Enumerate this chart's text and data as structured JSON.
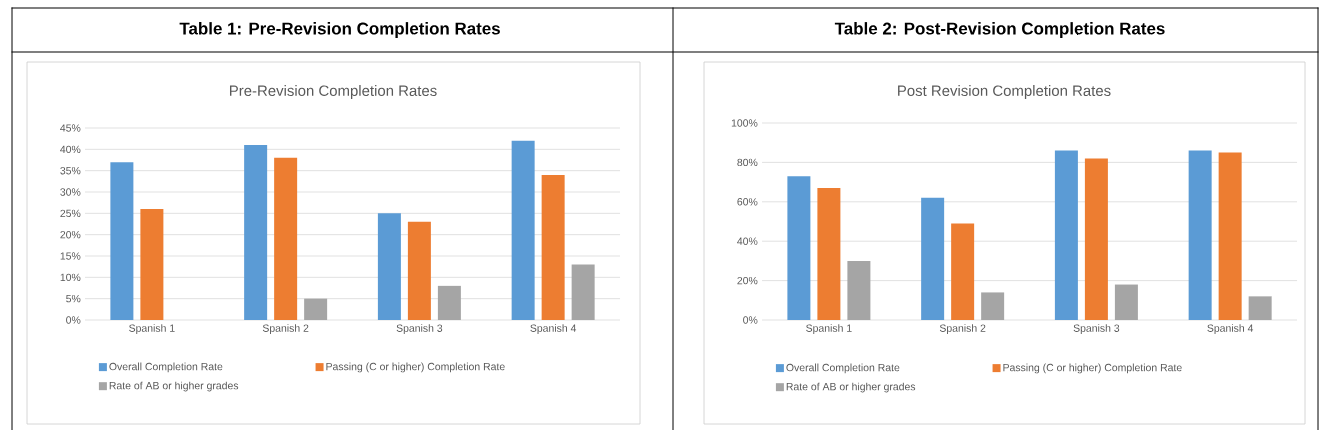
{
  "chart_data": [
    {
      "type": "bar",
      "title": "Table 1: Pre-Revision Completion Rates",
      "subtitle": "Pre-Revision Completion Rates",
      "categories": [
        "Spanish 1",
        "Spanish 2",
        "Spanish 3",
        "Spanish 4"
      ],
      "series": [
        {
          "name": "Overall Completion Rate",
          "color": "#5b9bd5",
          "values": [
            37,
            41,
            25,
            42
          ]
        },
        {
          "name": "Passing (C or higher) Completion Rate",
          "color": "#ed7d31",
          "values": [
            26,
            38,
            23,
            34
          ]
        },
        {
          "name": "Rate of AB or higher grades",
          "color": "#a5a5a5",
          "values": [
            null,
            5,
            8,
            13
          ]
        }
      ],
      "ylim": [
        0,
        45
      ],
      "yticks": [
        {
          "value": 0,
          "label": "0%"
        },
        {
          "value": 5,
          "label": "5%"
        },
        {
          "value": 10,
          "label": "10%"
        },
        {
          "value": 15,
          "label": "15%"
        },
        {
          "value": 20,
          "label": "20%"
        },
        {
          "value": 25,
          "label": "25%"
        },
        {
          "value": 30,
          "label": "30%"
        },
        {
          "value": 35,
          "label": "35%"
        },
        {
          "value": 40,
          "label": "40%"
        },
        {
          "value": 45,
          "label": "45%"
        }
      ],
      "grid": "y",
      "legend": "bottom"
    },
    {
      "type": "bar",
      "title": "Table 2: Post-Revision Completion Rates",
      "subtitle": "Post Revision Completion Rates",
      "categories": [
        "Spanish 1",
        "Spanish 2",
        "Spanish 3",
        "Spanish 4"
      ],
      "series": [
        {
          "name": "Overall Completion Rate",
          "color": "#5b9bd5",
          "values": [
            73,
            62,
            86,
            86
          ]
        },
        {
          "name": "Passing (C or higher) Completion Rate",
          "color": "#ed7d31",
          "values": [
            67,
            49,
            82,
            85
          ]
        },
        {
          "name": "Rate of AB or higher grades",
          "color": "#a5a5a5",
          "values": [
            30,
            14,
            18,
            12
          ]
        }
      ],
      "ylim": [
        0,
        100
      ],
      "yticks": [
        {
          "value": 0,
          "label": "0%"
        },
        {
          "value": 20,
          "label": "20%"
        },
        {
          "value": 40,
          "label": "40%"
        },
        {
          "value": 60,
          "label": "60%"
        },
        {
          "value": 80,
          "label": "80%"
        },
        {
          "value": 100,
          "label": "100%"
        }
      ],
      "grid": "y",
      "legend": "bottom"
    }
  ]
}
